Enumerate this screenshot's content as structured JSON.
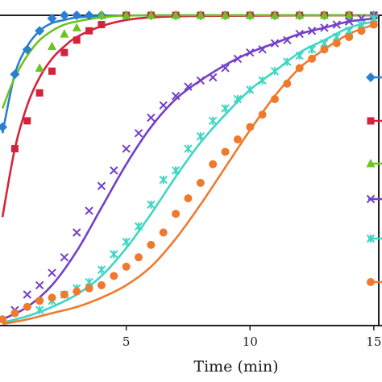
{
  "chart_data": {
    "type": "line",
    "xlabel": "Time (min)",
    "ylabel": "",
    "title": "",
    "xlim": [
      -0.1,
      15.2
    ],
    "ylim": [
      0,
      1.0
    ],
    "x_ticks": [
      5,
      10,
      15
    ],
    "x_tick_labels": [
      "5",
      "10",
      "15"
    ],
    "grid": false,
    "legend": "right, partially cropped",
    "series": [
      {
        "color": "#2a7fd1",
        "marker": "diamond",
        "points": [
          [
            0,
            0.64
          ],
          [
            0.5,
            0.81
          ],
          [
            1,
            0.89
          ],
          [
            1.5,
            0.95
          ],
          [
            2,
            0.99
          ],
          [
            2.5,
            1.0
          ],
          [
            3,
            1.0
          ],
          [
            3.5,
            1.0
          ],
          [
            4,
            1.0
          ],
          [
            5,
            1.0
          ],
          [
            6,
            1.0
          ],
          [
            7,
            1.0
          ],
          [
            8,
            1.0
          ],
          [
            9,
            1.0
          ],
          [
            10,
            1.0
          ],
          [
            11,
            1.0
          ],
          [
            12,
            1.0
          ],
          [
            13,
            1.0
          ],
          [
            14,
            1.0
          ],
          [
            15,
            1.0
          ]
        ],
        "curve": [
          [
            0,
            0.62
          ],
          [
            0.5,
            0.81
          ],
          [
            1,
            0.9
          ],
          [
            1.5,
            0.95
          ],
          [
            2,
            0.975
          ],
          [
            2.5,
            0.985
          ],
          [
            3,
            0.993
          ],
          [
            4,
            0.998
          ],
          [
            6,
            1.0
          ],
          [
            15,
            1.0
          ]
        ]
      },
      {
        "color": "#d3253a",
        "marker": "square",
        "points": [
          [
            0.5,
            0.57
          ],
          [
            1,
            0.66
          ],
          [
            1.5,
            0.75
          ],
          [
            2,
            0.82
          ],
          [
            2.5,
            0.88
          ],
          [
            3,
            0.92
          ],
          [
            3.5,
            0.95
          ],
          [
            4,
            0.97
          ],
          [
            5,
            1.0
          ],
          [
            6,
            1.0
          ],
          [
            7,
            1.0
          ],
          [
            8,
            1.0
          ],
          [
            9,
            1.0
          ],
          [
            10,
            1.0
          ],
          [
            11,
            1.0
          ],
          [
            12,
            1.0
          ],
          [
            13,
            1.0
          ],
          [
            14,
            1.0
          ],
          [
            15,
            1.0
          ]
        ],
        "curve": [
          [
            0,
            0.35
          ],
          [
            0.5,
            0.57
          ],
          [
            1,
            0.71
          ],
          [
            1.5,
            0.8
          ],
          [
            2,
            0.86
          ],
          [
            2.5,
            0.9
          ],
          [
            3,
            0.93
          ],
          [
            4,
            0.965
          ],
          [
            5,
            0.985
          ],
          [
            6,
            0.993
          ],
          [
            8,
            0.998
          ],
          [
            15,
            1.0
          ]
        ]
      },
      {
        "color": "#6cc41f",
        "marker": "triangle",
        "points": [
          [
            1.5,
            0.83
          ],
          [
            2,
            0.9
          ],
          [
            2.5,
            0.94
          ],
          [
            3,
            0.96
          ],
          [
            4,
            1.0
          ],
          [
            5,
            1.0
          ],
          [
            6,
            1.0
          ],
          [
            7,
            1.0
          ],
          [
            8,
            1.0
          ],
          [
            9,
            1.0
          ],
          [
            10,
            1.0
          ],
          [
            11,
            1.0
          ],
          [
            12,
            1.0
          ],
          [
            13,
            1.0
          ],
          [
            14,
            1.0
          ],
          [
            15,
            1.0
          ]
        ],
        "curve": [
          [
            0,
            0.7
          ],
          [
            0.5,
            0.8
          ],
          [
            1,
            0.87
          ],
          [
            1.5,
            0.92
          ],
          [
            2,
            0.95
          ],
          [
            2.5,
            0.97
          ],
          [
            3,
            0.98
          ],
          [
            4,
            0.993
          ],
          [
            6,
            1.0
          ],
          [
            15,
            1.0
          ]
        ]
      },
      {
        "color": "#7340c8",
        "marker": "x",
        "points": [
          [
            0.5,
            0.05
          ],
          [
            1,
            0.1
          ],
          [
            1.5,
            0.13
          ],
          [
            2,
            0.17
          ],
          [
            2.5,
            0.22
          ],
          [
            3,
            0.3
          ],
          [
            3.5,
            0.37
          ],
          [
            4,
            0.45
          ],
          [
            4.5,
            0.5
          ],
          [
            5,
            0.57
          ],
          [
            5.5,
            0.62
          ],
          [
            6,
            0.67
          ],
          [
            6.5,
            0.71
          ],
          [
            7,
            0.74
          ],
          [
            7.5,
            0.77
          ],
          [
            8,
            0.79
          ],
          [
            8.5,
            0.8
          ],
          [
            9,
            0.83
          ],
          [
            9.5,
            0.86
          ],
          [
            10,
            0.88
          ],
          [
            10.5,
            0.89
          ],
          [
            11,
            0.91
          ],
          [
            11.5,
            0.92
          ],
          [
            12,
            0.94
          ],
          [
            12.5,
            0.95
          ],
          [
            13,
            0.96
          ],
          [
            13.5,
            0.97
          ],
          [
            14,
            0.98
          ],
          [
            14.5,
            0.99
          ],
          [
            15,
            1.0
          ]
        ],
        "curve": [
          [
            0,
            0.02
          ],
          [
            1,
            0.06
          ],
          [
            2,
            0.13
          ],
          [
            3,
            0.24
          ],
          [
            4,
            0.38
          ],
          [
            5,
            0.52
          ],
          [
            6,
            0.64
          ],
          [
            7,
            0.73
          ],
          [
            8,
            0.79
          ],
          [
            9,
            0.84
          ],
          [
            10,
            0.88
          ],
          [
            11,
            0.91
          ],
          [
            12,
            0.94
          ],
          [
            13,
            0.96
          ],
          [
            14,
            0.98
          ],
          [
            15,
            0.99
          ]
        ]
      },
      {
        "color": "#3fd6c4",
        "marker": "asterisk",
        "points": [
          [
            1.5,
            0.05
          ],
          [
            2,
            0.08
          ],
          [
            2.5,
            0.1
          ],
          [
            3,
            0.12
          ],
          [
            3.5,
            0.14
          ],
          [
            4,
            0.18
          ],
          [
            4.5,
            0.23
          ],
          [
            5,
            0.27
          ],
          [
            5.5,
            0.32
          ],
          [
            6,
            0.39
          ],
          [
            6.5,
            0.47
          ],
          [
            7,
            0.5
          ],
          [
            7.5,
            0.57
          ],
          [
            8,
            0.61
          ],
          [
            8.5,
            0.66
          ],
          [
            9,
            0.7
          ],
          [
            9.5,
            0.73
          ],
          [
            10,
            0.76
          ],
          [
            10.5,
            0.79
          ],
          [
            11,
            0.82
          ],
          [
            11.5,
            0.85
          ],
          [
            12,
            0.87
          ],
          [
            12.5,
            0.89
          ],
          [
            13,
            0.91
          ],
          [
            13.5,
            0.93
          ],
          [
            14,
            0.95
          ],
          [
            14.5,
            0.97
          ],
          [
            15,
            0.99
          ]
        ],
        "curve": [
          [
            0,
            0.01
          ],
          [
            1,
            0.03
          ],
          [
            2,
            0.06
          ],
          [
            3,
            0.1
          ],
          [
            4,
            0.16
          ],
          [
            5,
            0.25
          ],
          [
            6,
            0.36
          ],
          [
            7,
            0.48
          ],
          [
            8,
            0.59
          ],
          [
            9,
            0.68
          ],
          [
            10,
            0.76
          ],
          [
            11,
            0.82
          ],
          [
            12,
            0.88
          ],
          [
            13,
            0.92
          ],
          [
            14,
            0.96
          ],
          [
            15,
            0.98
          ]
        ]
      },
      {
        "color": "#ef7a2d",
        "marker": "circle",
        "points": [
          [
            0,
            0.02
          ],
          [
            0.5,
            0.04
          ],
          [
            1,
            0.06
          ],
          [
            1.5,
            0.08
          ],
          [
            2,
            0.09
          ],
          [
            2.5,
            0.1
          ],
          [
            3,
            0.11
          ],
          [
            3.5,
            0.12
          ],
          [
            4,
            0.13
          ],
          [
            4.5,
            0.16
          ],
          [
            5,
            0.19
          ],
          [
            5.5,
            0.22
          ],
          [
            6,
            0.26
          ],
          [
            6.5,
            0.3
          ],
          [
            7,
            0.36
          ],
          [
            7.5,
            0.41
          ],
          [
            8,
            0.46
          ],
          [
            8.5,
            0.52
          ],
          [
            9,
            0.56
          ],
          [
            9.5,
            0.6
          ],
          [
            10,
            0.64
          ],
          [
            10.5,
            0.68
          ],
          [
            11,
            0.73
          ],
          [
            11.5,
            0.78
          ],
          [
            12,
            0.83
          ],
          [
            12.5,
            0.86
          ],
          [
            13,
            0.89
          ],
          [
            13.5,
            0.91
          ],
          [
            14,
            0.93
          ],
          [
            14.5,
            0.95
          ],
          [
            15,
            0.97
          ]
        ],
        "curve": [
          [
            0,
            0.005
          ],
          [
            1,
            0.02
          ],
          [
            2,
            0.04
          ],
          [
            3,
            0.06
          ],
          [
            4,
            0.09
          ],
          [
            5,
            0.13
          ],
          [
            6,
            0.19
          ],
          [
            7,
            0.28
          ],
          [
            8,
            0.39
          ],
          [
            9,
            0.51
          ],
          [
            10,
            0.63
          ],
          [
            11,
            0.74
          ],
          [
            12,
            0.83
          ],
          [
            13,
            0.89
          ],
          [
            14,
            0.94
          ],
          [
            15,
            0.97
          ]
        ]
      }
    ]
  }
}
